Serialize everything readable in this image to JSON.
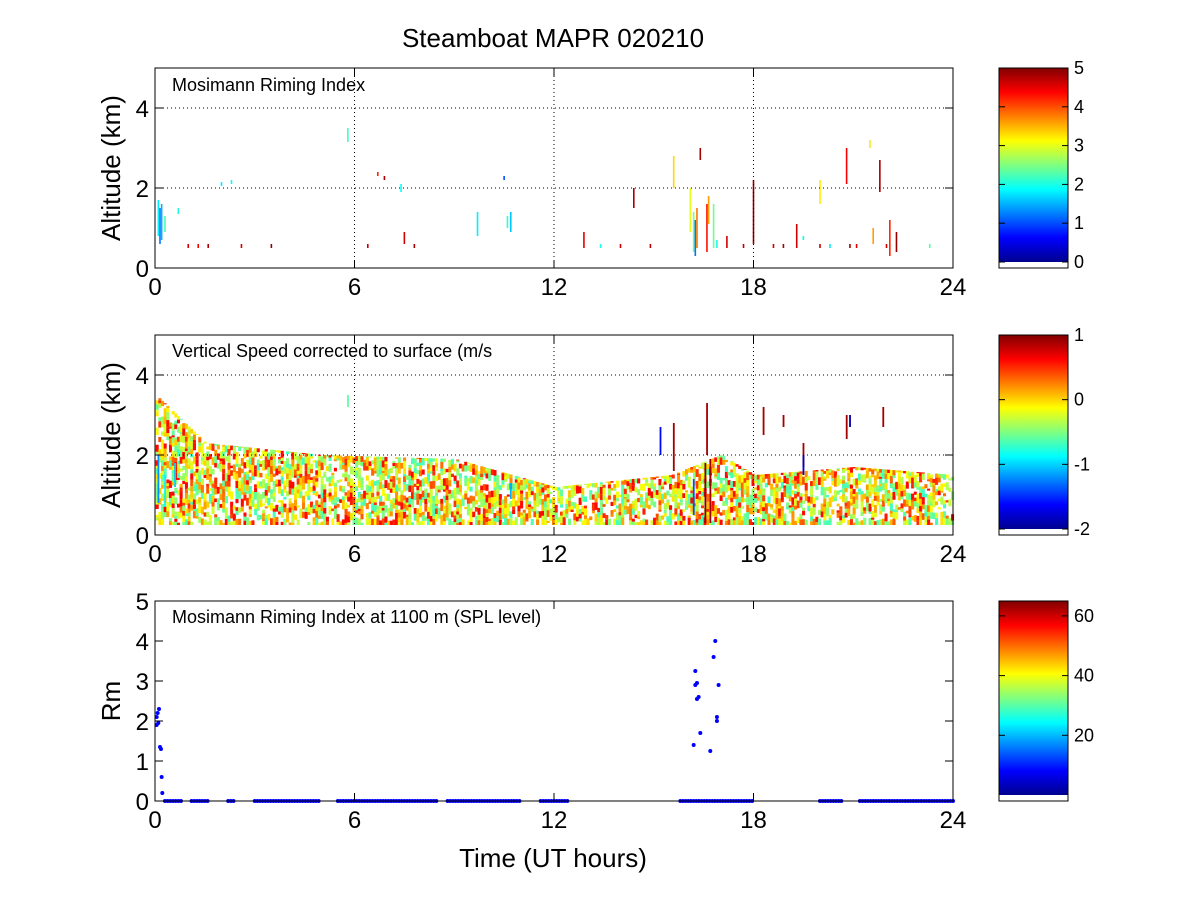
{
  "title": "Steamboat MAPR 020210",
  "xlabel": "Time (UT hours)",
  "chart_data": [
    {
      "type": "heatmap",
      "panel_label": "Mosimann Riming Index",
      "ylabel": "Altitude (km)",
      "xlim": [
        0,
        24
      ],
      "ylim": [
        0,
        5
      ],
      "xticks": [
        "0",
        "6",
        "12",
        "18",
        "24"
      ],
      "yticks": [
        "0",
        "2",
        "4"
      ],
      "ytick_values": [
        0,
        2,
        4
      ],
      "grid": "dotted",
      "colorbar": {
        "min": 0,
        "max": 5,
        "ticks": [
          "0",
          "1",
          "2",
          "3",
          "4",
          "5"
        ],
        "tick_values": [
          0,
          1,
          2,
          3,
          4,
          5
        ]
      },
      "segments": [
        [
          0.1,
          0.8,
          1.7,
          1.8
        ],
        [
          0.15,
          0.6,
          1.5,
          1.2
        ],
        [
          0.2,
          0.7,
          1.6,
          1.5
        ],
        [
          0.3,
          0.9,
          1.3,
          2.2
        ],
        [
          0.7,
          1.35,
          1.5,
          2.0
        ],
        [
          1.0,
          0.5,
          0.6,
          4.6
        ],
        [
          1.3,
          0.5,
          0.6,
          4.4
        ],
        [
          1.6,
          0.5,
          0.6,
          4.8
        ],
        [
          2.0,
          2.05,
          2.15,
          1.8
        ],
        [
          2.3,
          2.1,
          2.2,
          1.9
        ],
        [
          2.6,
          0.5,
          0.6,
          4.6
        ],
        [
          3.5,
          0.5,
          0.6,
          4.9
        ],
        [
          5.8,
          3.15,
          3.5,
          2.2
        ],
        [
          6.4,
          0.5,
          0.6,
          4.7
        ],
        [
          6.7,
          2.3,
          2.4,
          4.2
        ],
        [
          6.9,
          2.2,
          2.3,
          4.8
        ],
        [
          7.4,
          1.9,
          2.1,
          1.9
        ],
        [
          7.5,
          0.6,
          0.9,
          4.6
        ],
        [
          7.8,
          0.5,
          0.6,
          4.8
        ],
        [
          9.7,
          0.8,
          1.4,
          1.8
        ],
        [
          10.5,
          2.2,
          2.3,
          1.0
        ],
        [
          10.6,
          1.0,
          1.3,
          2.1
        ],
        [
          10.7,
          0.9,
          1.4,
          1.6
        ],
        [
          12.9,
          0.5,
          0.9,
          4.5
        ],
        [
          13.4,
          0.5,
          0.6,
          2.0
        ],
        [
          14.0,
          0.5,
          0.6,
          4.6
        ],
        [
          14.4,
          1.5,
          2.0,
          4.8
        ],
        [
          14.9,
          0.5,
          0.6,
          4.7
        ],
        [
          15.6,
          2.0,
          2.8,
          3.3
        ],
        [
          16.1,
          0.9,
          2.0,
          3.0
        ],
        [
          16.2,
          0.4,
          1.4,
          2.5
        ],
        [
          16.25,
          0.3,
          1.2,
          1.2
        ],
        [
          16.3,
          0.5,
          1.5,
          3.8
        ],
        [
          16.4,
          2.7,
          3.0,
          4.8
        ],
        [
          16.6,
          0.4,
          1.6,
          4.3
        ],
        [
          16.65,
          1.1,
          1.8,
          3.6
        ],
        [
          16.8,
          0.5,
          1.6,
          2.4
        ],
        [
          16.9,
          0.5,
          0.7,
          2.0
        ],
        [
          17.2,
          0.5,
          0.8,
          4.6
        ],
        [
          17.7,
          0.5,
          0.6,
          4.7
        ],
        [
          18.0,
          0.6,
          2.2,
          4.9
        ],
        [
          18.6,
          0.5,
          0.6,
          4.6
        ],
        [
          18.9,
          0.5,
          0.6,
          4.8
        ],
        [
          19.3,
          0.5,
          1.1,
          4.6
        ],
        [
          19.5,
          0.7,
          0.8,
          1.9
        ],
        [
          20.0,
          1.6,
          2.2,
          3.2
        ],
        [
          20.0,
          0.5,
          0.6,
          4.6
        ],
        [
          20.3,
          0.5,
          0.6,
          1.8
        ],
        [
          20.8,
          2.1,
          3.0,
          4.4
        ],
        [
          20.9,
          0.5,
          0.6,
          4.8
        ],
        [
          21.1,
          0.5,
          0.6,
          4.5
        ],
        [
          21.5,
          3.0,
          3.2,
          3.2
        ],
        [
          21.6,
          0.6,
          1.0,
          3.6
        ],
        [
          21.8,
          1.9,
          2.7,
          4.8
        ],
        [
          22.0,
          0.5,
          0.6,
          4.6
        ],
        [
          22.1,
          0.3,
          1.2,
          4.2
        ],
        [
          22.3,
          0.4,
          0.9,
          4.9
        ],
        [
          23.3,
          0.5,
          0.6,
          2.3
        ]
      ]
    },
    {
      "type": "heatmap",
      "panel_label": "Vertical Speed corrected to surface (m/s",
      "ylabel": "Altitude (km)",
      "xlim": [
        0,
        24
      ],
      "ylim": [
        0,
        5
      ],
      "xticks": [
        "0",
        "6",
        "12",
        "18",
        "24"
      ],
      "yticks": [
        "0",
        "2",
        "4"
      ],
      "ytick_values": [
        0,
        2,
        4
      ],
      "grid": "dotted",
      "colorbar": {
        "min": -2,
        "max": 1,
        "ticks": [
          "1",
          "0",
          "-1",
          "-2"
        ],
        "tick_values": [
          1,
          0,
          -1,
          -2
        ]
      },
      "field_value_range": [
        -0.9,
        0.6
      ],
      "field_extent_km": [
        [
          0,
          3.5
        ],
        [
          1.5,
          2.3
        ],
        [
          5,
          2.0
        ],
        [
          9,
          1.9
        ],
        [
          12,
          1.2
        ],
        [
          15.5,
          1.5
        ],
        [
          17,
          2.0
        ],
        [
          18,
          1.5
        ],
        [
          21,
          1.7
        ],
        [
          24,
          1.5
        ]
      ],
      "strong_updrafts": [
        [
          16.55,
          0.3,
          1.8,
          1.0
        ],
        [
          16.7,
          0.3,
          1.9,
          0.9
        ],
        [
          15.6,
          1.6,
          2.8,
          0.9
        ],
        [
          16.6,
          2.0,
          3.3,
          0.9
        ],
        [
          18.3,
          2.5,
          3.2,
          0.9
        ],
        [
          18.9,
          2.7,
          3.0,
          0.9
        ],
        [
          19.5,
          1.7,
          2.3,
          0.9
        ],
        [
          20.8,
          2.4,
          3.0,
          0.9
        ],
        [
          21.9,
          2.7,
          3.2,
          0.9
        ]
      ],
      "downdrafts": [
        [
          0.1,
          0.8,
          2.0,
          -1.2
        ],
        [
          0.3,
          0.7,
          1.5,
          -0.9
        ],
        [
          0.6,
          1.2,
          1.8,
          -1.0
        ],
        [
          10.7,
          0.9,
          1.3,
          -1.1
        ],
        [
          16.2,
          0.5,
          1.4,
          -1.4
        ],
        [
          15.2,
          2.0,
          2.7,
          -1.6
        ],
        [
          19.5,
          1.5,
          2.0,
          -1.8
        ],
        [
          20.9,
          2.7,
          3.0,
          -1.9
        ],
        [
          5.8,
          3.2,
          3.5,
          -0.6
        ]
      ]
    },
    {
      "type": "scatter",
      "panel_label": "Mosimann Riming Index at 1100 m (SPL level)",
      "ylabel": "Rm",
      "xlim": [
        0,
        24
      ],
      "ylim": [
        0,
        5
      ],
      "xticks": [
        "0",
        "6",
        "12",
        "18",
        "24"
      ],
      "yticks": [
        "0",
        "1",
        "2",
        "3",
        "4",
        "5"
      ],
      "ytick_values": [
        0,
        1,
        2,
        3,
        4,
        5
      ],
      "colorbar": {
        "min": 0,
        "max": 65,
        "ticks": [
          "60",
          "40",
          "20"
        ],
        "tick_values": [
          60,
          40,
          20
        ]
      },
      "points": [
        [
          0.05,
          1.9
        ],
        [
          0.05,
          2.1
        ],
        [
          0.08,
          2.2
        ],
        [
          0.1,
          1.95
        ],
        [
          0.12,
          2.3
        ],
        [
          0.15,
          1.35
        ],
        [
          0.18,
          1.3
        ],
        [
          0.2,
          0.6
        ],
        [
          0.22,
          0.2
        ],
        [
          16.2,
          1.4
        ],
        [
          16.25,
          2.9
        ],
        [
          16.3,
          2.95
        ],
        [
          16.25,
          3.25
        ],
        [
          16.3,
          2.55
        ],
        [
          16.35,
          2.6
        ],
        [
          16.4,
          1.7
        ],
        [
          16.7,
          1.25
        ],
        [
          16.8,
          3.6
        ],
        [
          16.85,
          4.0
        ],
        [
          16.9,
          2.0
        ],
        [
          16.9,
          2.1
        ],
        [
          16.95,
          2.9
        ]
      ],
      "zero_ranges": [
        [
          0.3,
          0.8
        ],
        [
          1.1,
          1.6
        ],
        [
          2.2,
          2.4
        ],
        [
          3.0,
          5.0
        ],
        [
          5.5,
          8.5
        ],
        [
          8.8,
          11.0
        ],
        [
          11.6,
          12.4
        ],
        [
          15.8,
          18.0
        ],
        [
          20.0,
          20.7
        ],
        [
          21.2,
          24.0
        ]
      ]
    }
  ]
}
